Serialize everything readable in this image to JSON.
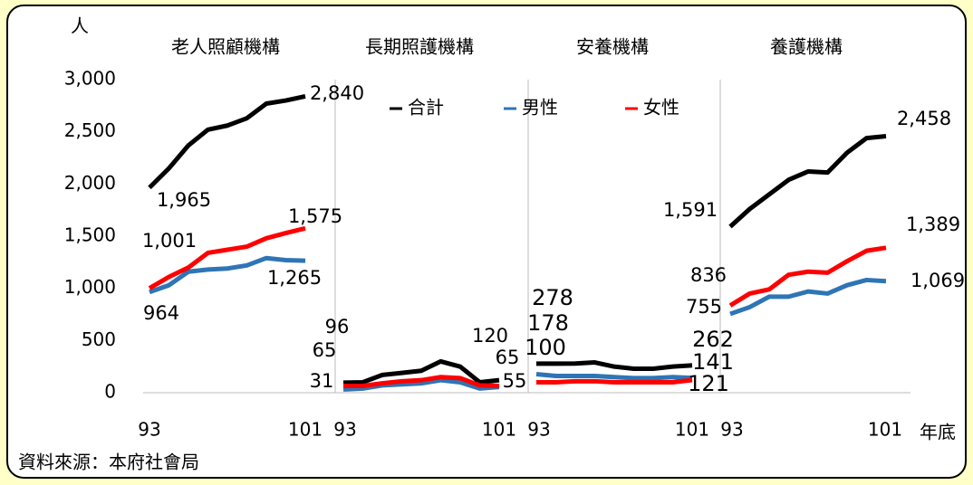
{
  "chart_data": {
    "type": "line",
    "y_unit": "人",
    "x_unit": "年底",
    "source": "資料來源：本府社會局",
    "panels": [
      "老人照顧機構",
      "長期照護機構",
      "安養機構",
      "養護機構"
    ],
    "x": [
      93,
      94,
      95,
      96,
      97,
      98,
      99,
      100,
      101
    ],
    "xlim": [
      93,
      101
    ],
    "xticks": [
      93,
      101
    ],
    "ylim": [
      0,
      3000
    ],
    "yticks": [
      0,
      {
        "value": 500,
        "label": "500"
      },
      {
        "value": 1000,
        "label": "1,000"
      },
      {
        "value": 1500,
        "label": "1,500"
      },
      {
        "value": 2000,
        "label": "2,000"
      },
      {
        "value": 2500,
        "label": "2,500"
      },
      {
        "value": 3000,
        "label": "3,000"
      }
    ],
    "legend": "top",
    "series": [
      {
        "name": "合計",
        "color": "#000000",
        "values": [
          [
            1965,
            2150,
            2370,
            2520,
            2560,
            2630,
            2770,
            2800,
            2840
          ],
          [
            96,
            100,
            170,
            190,
            210,
            300,
            250,
            100,
            120
          ],
          [
            278,
            278,
            280,
            290,
            250,
            230,
            230,
            250,
            262
          ],
          [
            1591,
            1760,
            1900,
            2040,
            2120,
            2110,
            2300,
            2440,
            2458
          ]
        ],
        "value_labels": [
          [
            "1,965",
            null,
            null,
            null,
            null,
            null,
            null,
            null,
            "2,840"
          ],
          [
            "96",
            null,
            null,
            null,
            null,
            null,
            null,
            null,
            "120"
          ],
          [
            "278",
            null,
            null,
            null,
            null,
            null,
            null,
            null,
            "262"
          ],
          [
            "1,591",
            null,
            null,
            null,
            null,
            null,
            null,
            null,
            "2,458"
          ]
        ]
      },
      {
        "name": "男性",
        "color": "#2e75b6",
        "values": [
          [
            964,
            1030,
            1160,
            1180,
            1190,
            1220,
            1290,
            1270,
            1265
          ],
          [
            31,
            40,
            70,
            80,
            90,
            120,
            100,
            40,
            55
          ],
          [
            178,
            160,
            160,
            160,
            150,
            140,
            140,
            150,
            141
          ],
          [
            755,
            820,
            920,
            920,
            970,
            950,
            1030,
            1080,
            1069
          ]
        ],
        "value_labels": [
          [
            "964",
            null,
            null,
            null,
            null,
            null,
            null,
            null,
            "1,265"
          ],
          [
            "31",
            null,
            null,
            null,
            null,
            null,
            null,
            null,
            "55"
          ],
          [
            "178",
            null,
            null,
            null,
            null,
            null,
            null,
            null,
            "141"
          ],
          [
            "755",
            null,
            null,
            null,
            null,
            null,
            null,
            null,
            "1,069"
          ]
        ]
      },
      {
        "name": "女性",
        "color": "#ff0000",
        "values": [
          [
            1001,
            1110,
            1200,
            1340,
            1370,
            1400,
            1480,
            1530,
            1575
          ],
          [
            65,
            65,
            90,
            110,
            120,
            150,
            140,
            70,
            65
          ],
          [
            100,
            100,
            110,
            110,
            100,
            100,
            100,
            100,
            121
          ],
          [
            836,
            950,
            990,
            1130,
            1160,
            1150,
            1260,
            1360,
            1389
          ]
        ],
        "value_labels": [
          [
            "1,001",
            null,
            null,
            null,
            null,
            null,
            null,
            null,
            "1,575"
          ],
          [
            "65",
            null,
            null,
            null,
            null,
            null,
            null,
            null,
            "65"
          ],
          [
            "100",
            null,
            null,
            null,
            null,
            null,
            null,
            null,
            "121"
          ],
          [
            "836",
            null,
            null,
            null,
            null,
            null,
            null,
            null,
            "1,389"
          ]
        ]
      }
    ]
  }
}
